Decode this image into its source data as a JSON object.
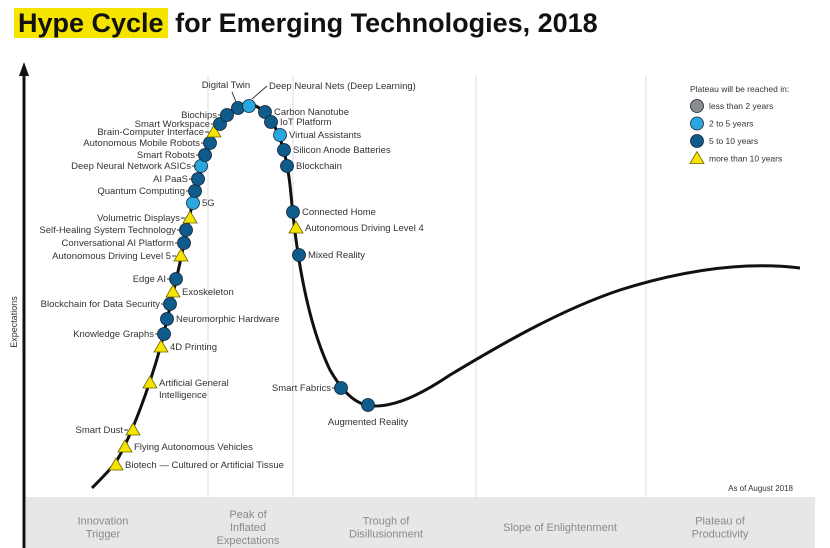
{
  "title": {
    "highlight": "Hype Cycle",
    "rest": "for Emerging Technologies, 2018"
  },
  "y_axis_label": "Expectations",
  "as_of": "As of August 2018",
  "legend": {
    "title": "Plateau will be reached in:",
    "items": [
      {
        "key": "lt2",
        "label": "less than 2 years",
        "shape": "circle",
        "color": "#8c8c8c"
      },
      {
        "key": "2to5",
        "label": "2 to 5 years",
        "shape": "circle",
        "color": "#2aa7df"
      },
      {
        "key": "5to10",
        "label": "5 to 10 years",
        "shape": "circle",
        "color": "#0f5b8c"
      },
      {
        "key": "gt10",
        "label": "more than 10 years",
        "shape": "triangle",
        "color": "#f5e400"
      }
    ]
  },
  "phases": [
    [
      "Innovation",
      "Trigger"
    ],
    [
      "Peak of",
      "Inflated",
      "Expectations"
    ],
    [
      "Trough of",
      "Disillusionment"
    ],
    [
      "Slope of Enlightenment"
    ],
    [
      "Plateau of",
      "Productivity"
    ]
  ],
  "technologies": [
    {
      "name": "Biotech — Cultured or Artificial Tissue",
      "plateau": "gt10"
    },
    {
      "name": "Flying Autonomous Vehicles",
      "plateau": "gt10"
    },
    {
      "name": "Smart Dust",
      "plateau": "gt10"
    },
    {
      "name": "Artificial General Intelligence",
      "plateau": "gt10"
    },
    {
      "name": "4D Printing",
      "plateau": "gt10"
    },
    {
      "name": "Knowledge Graphs",
      "plateau": "5to10"
    },
    {
      "name": "Neuromorphic Hardware",
      "plateau": "5to10"
    },
    {
      "name": "Blockchain for Data Security",
      "plateau": "5to10"
    },
    {
      "name": "Exoskeleton",
      "plateau": "gt10"
    },
    {
      "name": "Edge AI",
      "plateau": "5to10"
    },
    {
      "name": "Autonomous Driving Level 5",
      "plateau": "gt10"
    },
    {
      "name": "Conversational AI Platform",
      "plateau": "5to10"
    },
    {
      "name": "Self-Healing System Technology",
      "plateau": "5to10"
    },
    {
      "name": "Volumetric Displays",
      "plateau": "gt10"
    },
    {
      "name": "5G",
      "plateau": "2to5"
    },
    {
      "name": "Quantum Computing",
      "plateau": "5to10"
    },
    {
      "name": "AI PaaS",
      "plateau": "5to10"
    },
    {
      "name": "Deep Neural Network ASICs",
      "plateau": "2to5"
    },
    {
      "name": "Smart Robots",
      "plateau": "5to10"
    },
    {
      "name": "Autonomous Mobile Robots",
      "plateau": "5to10"
    },
    {
      "name": "Brain-Computer Interface",
      "plateau": "gt10"
    },
    {
      "name": "Smart Workspace",
      "plateau": "5to10"
    },
    {
      "name": "Biochips",
      "plateau": "5to10"
    },
    {
      "name": "Digital Twin",
      "plateau": "5to10"
    },
    {
      "name": "Deep Neural Nets (Deep Learning)",
      "plateau": "2to5"
    },
    {
      "name": "Carbon Nanotube",
      "plateau": "5to10"
    },
    {
      "name": "IoT Platform",
      "plateau": "5to10"
    },
    {
      "name": "Virtual Assistants",
      "plateau": "2to5"
    },
    {
      "name": "Silicon Anode Batteries",
      "plateau": "5to10"
    },
    {
      "name": "Blockchain",
      "plateau": "5to10"
    },
    {
      "name": "Connected Home",
      "plateau": "5to10"
    },
    {
      "name": "Autonomous Driving Level 4",
      "plateau": "gt10"
    },
    {
      "name": "Mixed Reality",
      "plateau": "5to10"
    },
    {
      "name": "Smart Fabrics",
      "plateau": "5to10"
    },
    {
      "name": "Augmented Reality",
      "plateau": "5to10"
    }
  ]
}
